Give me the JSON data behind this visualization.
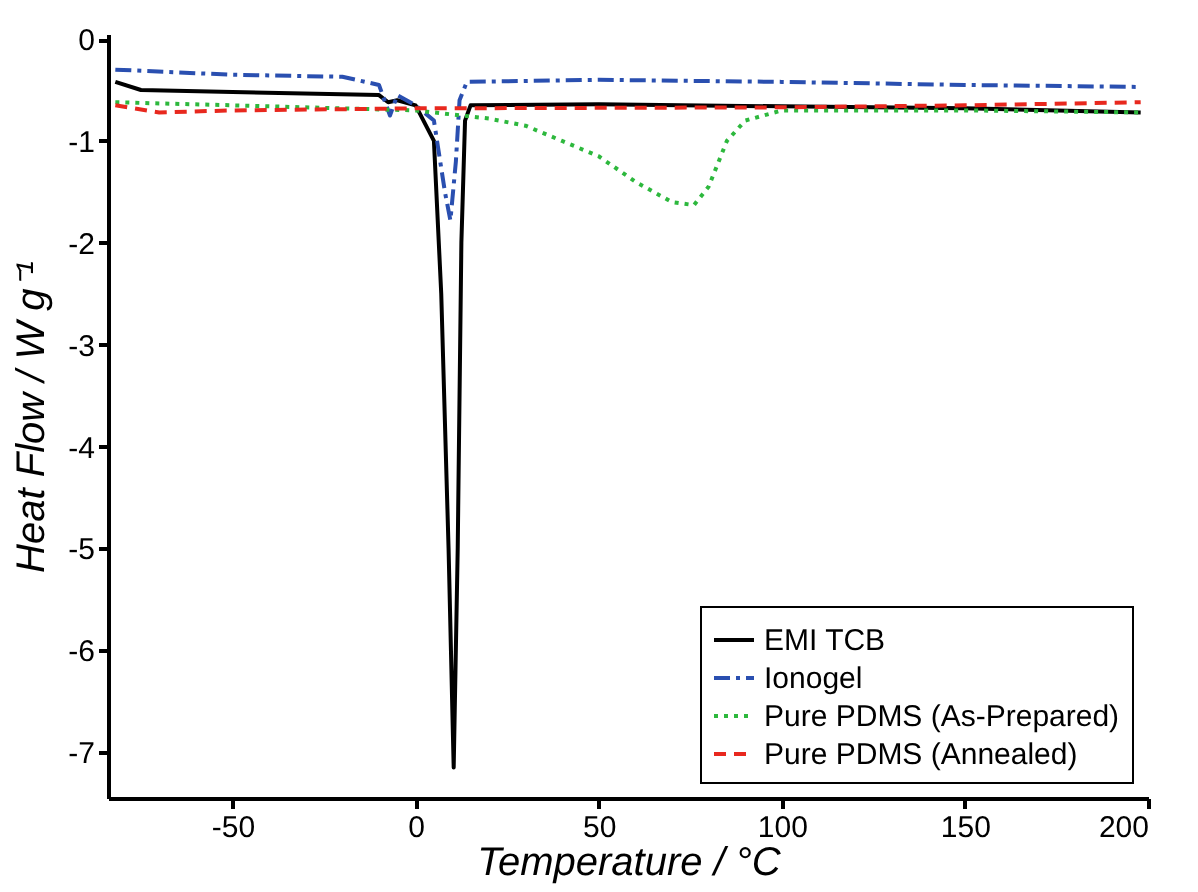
{
  "chart_data": {
    "type": "line",
    "xlabel": "Temperature / °C",
    "ylabel": "Heat Flow / W g⁻¹",
    "xlim": [
      -84,
      200
    ],
    "ylim": [
      -7.45,
      0.05
    ],
    "xticks": [
      -50,
      0,
      50,
      100,
      150,
      200
    ],
    "yticks": [
      0,
      -1,
      -2,
      -3,
      -4,
      -5,
      -6,
      -7
    ],
    "grid": false,
    "legend": "bottom right",
    "series": [
      {
        "name": "EMI TCB",
        "color": "#000000",
        "line_style": "solid",
        "x": [
          -82,
          -75,
          -50,
          -10,
          -7.5,
          -5,
          0,
          5,
          7,
          9,
          10.4,
          11.5,
          12.5,
          13.5,
          15,
          50,
          100,
          150,
          198
        ],
        "values": [
          -0.42,
          -0.5,
          -0.52,
          -0.55,
          -0.62,
          -0.6,
          -0.65,
          -1.0,
          -2.5,
          -5.0,
          -7.15,
          -5.0,
          -2.0,
          -0.8,
          -0.65,
          -0.64,
          -0.66,
          -0.68,
          -0.72
        ]
      },
      {
        "name": "Ionogel",
        "color": "#2a4fb0",
        "line_style": "dashdot",
        "x": [
          -82,
          -50,
          -20,
          -10,
          -7,
          -5,
          0,
          5,
          8,
          9.5,
          11,
          12,
          14,
          50,
          100,
          150,
          198
        ],
        "values": [
          -0.3,
          -0.35,
          -0.37,
          -0.45,
          -0.75,
          -0.55,
          -0.65,
          -0.8,
          -1.5,
          -1.78,
          -1.2,
          -0.6,
          -0.42,
          -0.4,
          -0.42,
          -0.45,
          -0.47
        ]
      },
      {
        "name": "Pure PDMS (As-Prepared)",
        "color": "#2db83d",
        "line_style": "dotted",
        "x": [
          -82,
          -50,
          0,
          20,
          30,
          40,
          50,
          60,
          70,
          76,
          80,
          85,
          90,
          100,
          150,
          198
        ],
        "values": [
          -0.62,
          -0.65,
          -0.7,
          -0.78,
          -0.85,
          -1.0,
          -1.15,
          -1.4,
          -1.6,
          -1.63,
          -1.45,
          -1.0,
          -0.8,
          -0.7,
          -0.7,
          -0.72
        ]
      },
      {
        "name": "Pure PDMS (Annealed)",
        "color": "#e8281e",
        "line_style": "dashed",
        "x": [
          -82,
          -70,
          -50,
          0,
          100,
          150,
          198
        ],
        "values": [
          -0.65,
          -0.72,
          -0.7,
          -0.68,
          -0.67,
          -0.65,
          -0.62
        ]
      }
    ]
  }
}
